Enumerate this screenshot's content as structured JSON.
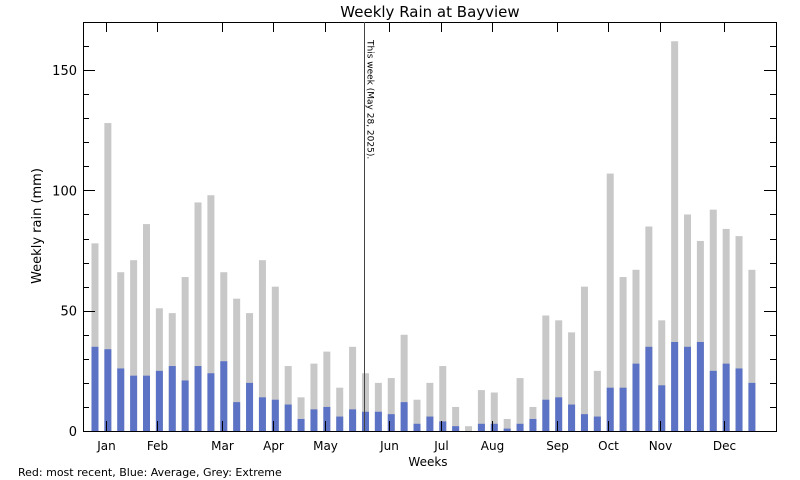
{
  "chart_data": {
    "type": "bar",
    "title": "Weekly Rain at Bayview",
    "xlabel": "Weeks",
    "ylabel": "Weekly rain (mm)",
    "legend_note": "Red: most recent, Blue: Average, Grey: Extreme",
    "annotation": {
      "text": "This week (May 28, 2025).",
      "week": 21.9
    },
    "xlim": [
      0.07,
      53.87
    ],
    "ylim": [
      0,
      170
    ],
    "yticks": [
      0,
      50,
      100,
      150
    ],
    "ytick_labels": [
      "0",
      "50",
      "100",
      "150"
    ],
    "y_minor_step": 10,
    "month_ticks": [
      {
        "label": "Jan",
        "week": 1.86
      },
      {
        "label": "Feb",
        "week": 5.8
      },
      {
        "label": "Mar",
        "week": 10.86
      },
      {
        "label": "Apr",
        "week": 14.8
      },
      {
        "label": "May",
        "week": 18.86
      },
      {
        "label": "Jun",
        "week": 23.8
      },
      {
        "label": "Jul",
        "week": 27.86
      },
      {
        "label": "Aug",
        "week": 31.8
      },
      {
        "label": "Sep",
        "week": 36.86
      },
      {
        "label": "Oct",
        "week": 40.8
      },
      {
        "label": "Nov",
        "week": 44.86
      },
      {
        "label": "Dec",
        "week": 49.8
      }
    ],
    "weeks": [
      1,
      2,
      3,
      4,
      5,
      6,
      7,
      8,
      9,
      10,
      11,
      12,
      13,
      14,
      15,
      16,
      17,
      18,
      19,
      20,
      21,
      22,
      23,
      24,
      25,
      26,
      27,
      28,
      29,
      30,
      31,
      32,
      33,
      34,
      35,
      36,
      37,
      38,
      39,
      40,
      41,
      42,
      43,
      44,
      45,
      46,
      47,
      48,
      49,
      50,
      51,
      52
    ],
    "series": [
      {
        "name": "Extreme",
        "color": "#c8c8c8",
        "values": [
          78,
          128,
          66,
          71,
          86,
          51,
          49,
          64,
          95,
          98,
          66,
          55,
          49,
          71,
          60,
          27,
          14,
          28,
          33,
          18,
          35,
          24,
          20,
          22,
          40,
          13,
          20,
          27,
          10,
          2,
          17,
          16,
          5,
          22,
          10,
          48,
          46,
          41,
          60,
          25,
          107,
          64,
          67,
          85,
          46,
          162,
          90,
          79,
          92,
          84,
          81,
          67
        ]
      },
      {
        "name": "Average",
        "color": "#5c73c5",
        "values": [
          35,
          34,
          26,
          23,
          23,
          25,
          27,
          21,
          27,
          24,
          29,
          12,
          20,
          14,
          13,
          11,
          5,
          9,
          10,
          6,
          9,
          8,
          8,
          7,
          12,
          3,
          6,
          4,
          2,
          0,
          3,
          3,
          1,
          3,
          5,
          13,
          14,
          11,
          7,
          6,
          18,
          18,
          28,
          35,
          19,
          37,
          35,
          37,
          25,
          28,
          26,
          20
        ]
      }
    ]
  }
}
